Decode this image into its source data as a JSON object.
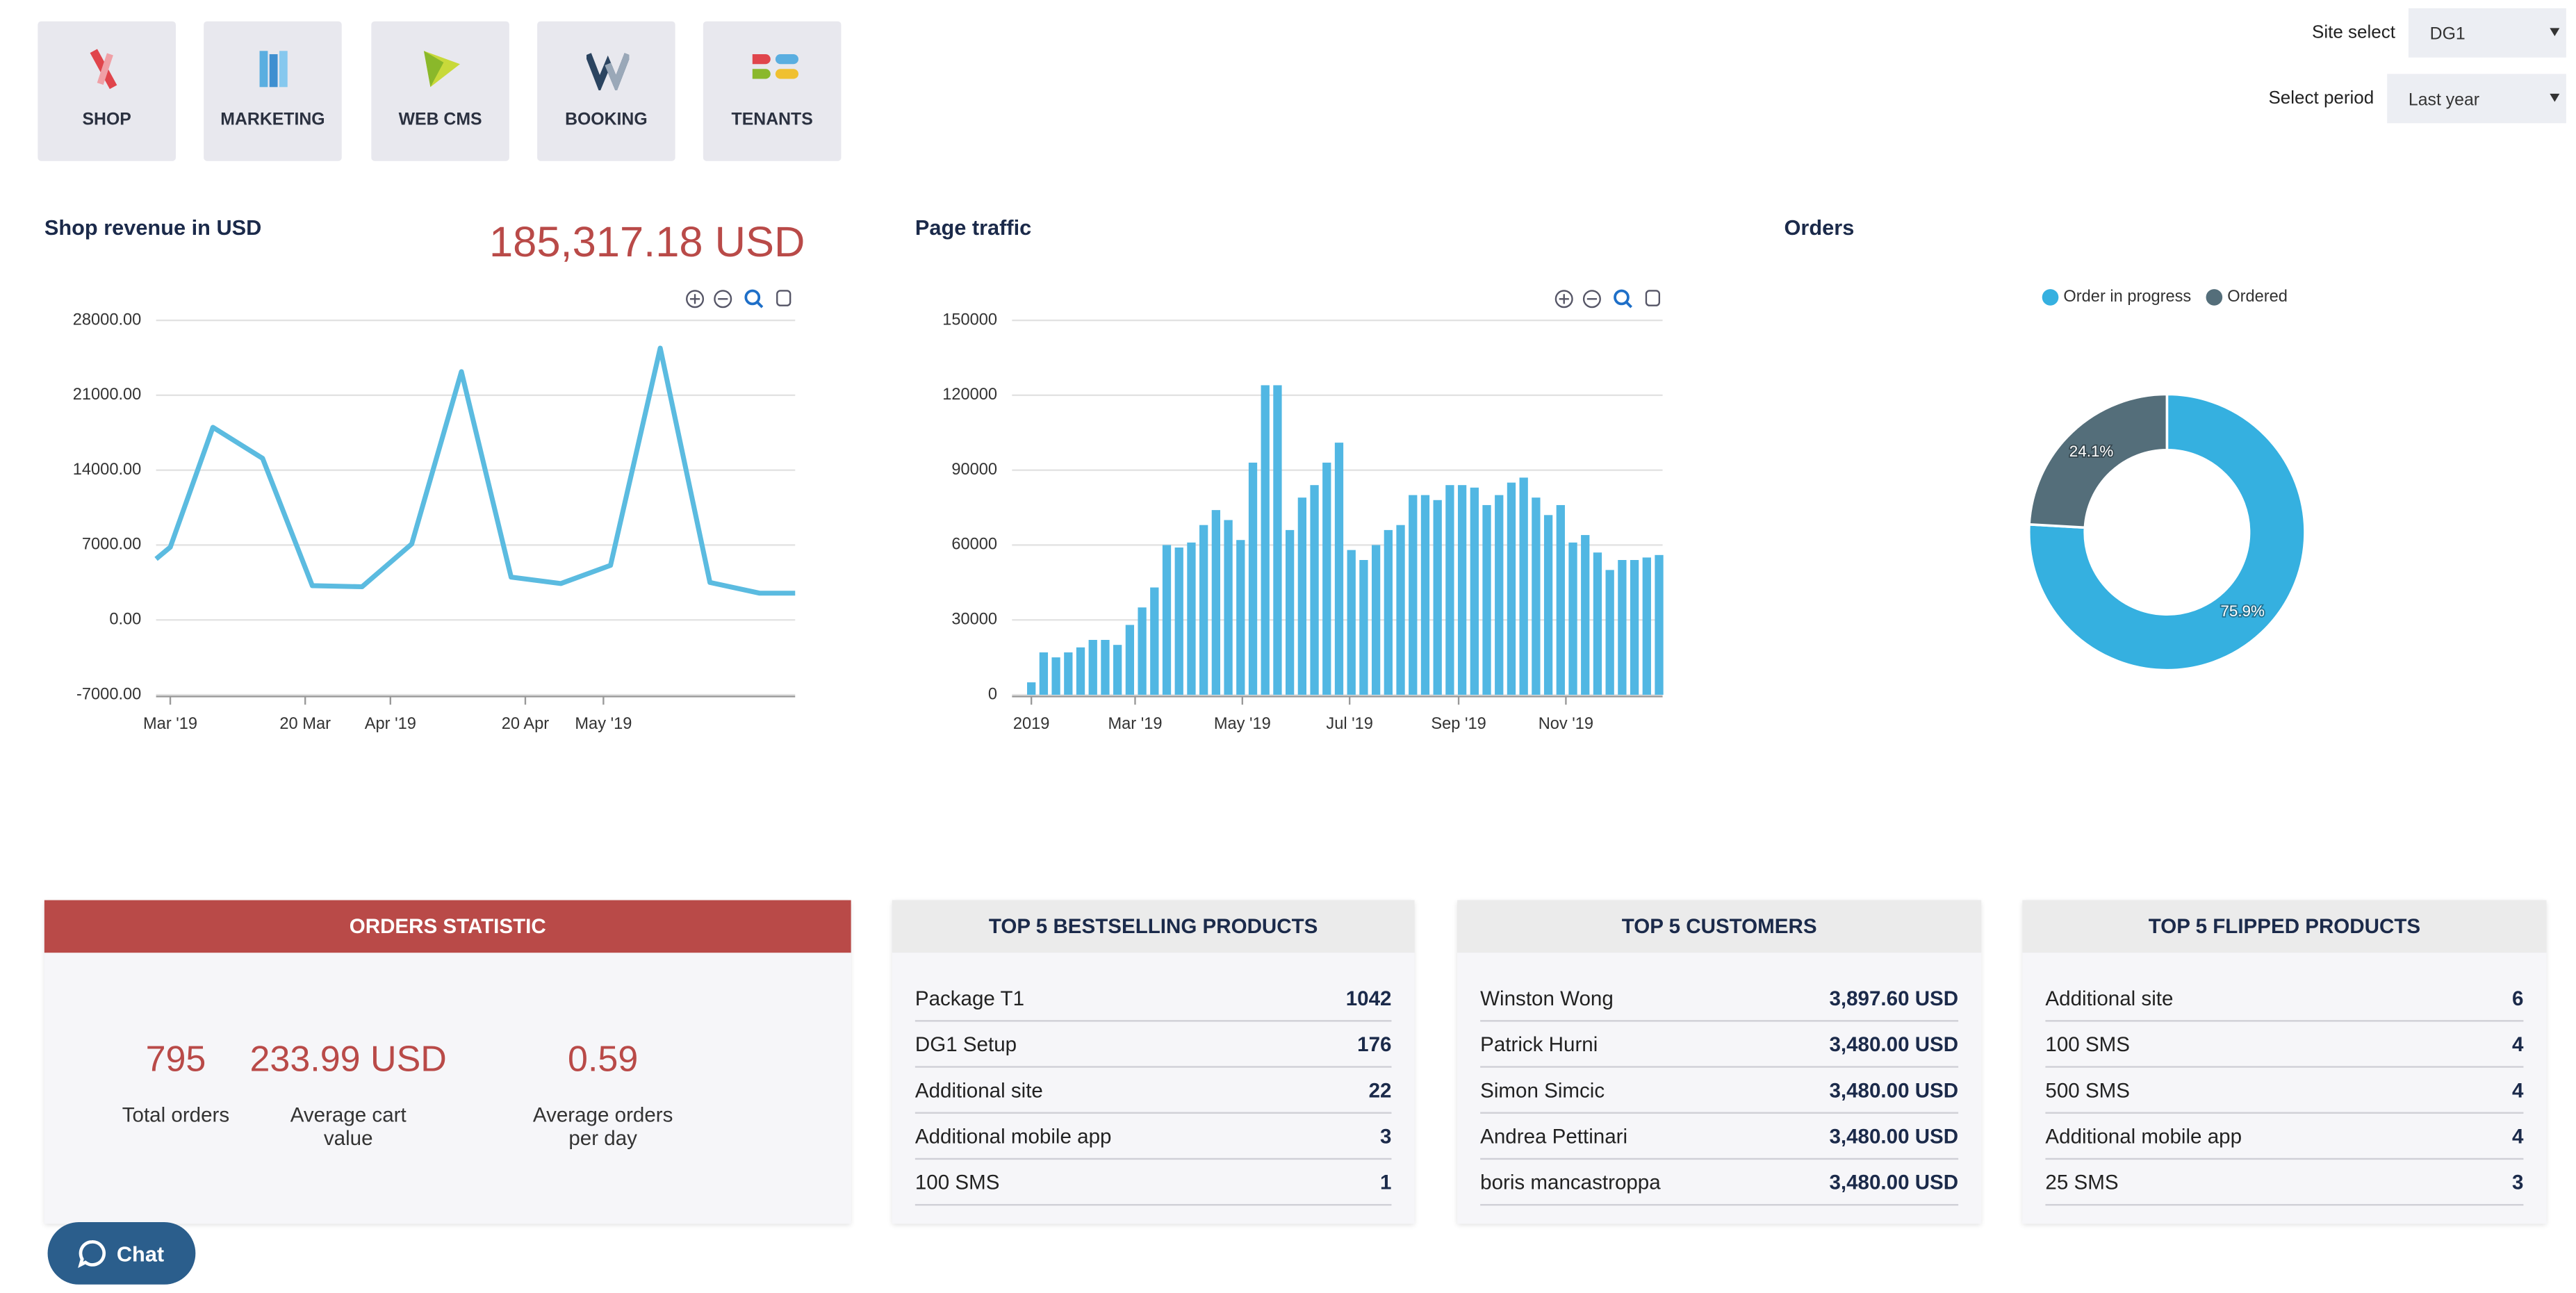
{
  "nav": [
    "SHOP",
    "MARKETING",
    "WEB CMS",
    "BOOKING",
    "TENANTS"
  ],
  "site_select": {
    "label": "Site select",
    "value": "DG1"
  },
  "period_select": {
    "label": "Select period",
    "value": "Last year"
  },
  "revenue_total": "185,317.18 USD",
  "chart_data": [
    {
      "type": "line",
      "title": "Shop revenue in USD",
      "color": "#5bbbe0",
      "x": [
        57,
        59,
        65,
        72,
        79,
        86,
        93,
        100,
        107,
        114,
        121,
        128,
        135,
        142,
        147
      ],
      "values": [
        5700,
        6800,
        18000,
        15100,
        3200,
        3100,
        7100,
        23200,
        4000,
        3400,
        5100,
        25400,
        3500,
        2500,
        2500
      ],
      "xlim": [
        57,
        147
      ],
      "xticks": [
        {
          "value": 59,
          "label": "Mar '19"
        },
        {
          "value": 78,
          "label": "20 Mar"
        },
        {
          "value": 90,
          "label": "Apr '19"
        },
        {
          "value": 109,
          "label": "20 Apr"
        },
        {
          "value": 120,
          "label": "May '19"
        }
      ],
      "ylim": [
        -7000,
        28000
      ],
      "yticks": [
        {
          "value": -7000,
          "label": "-7000.00"
        },
        {
          "value": 0,
          "label": "0.00"
        },
        {
          "value": 7000,
          "label": "7000.00"
        },
        {
          "value": 14000,
          "label": "14000.00"
        },
        {
          "value": 21000,
          "label": "21000.00"
        },
        {
          "value": 28000,
          "label": "28000.00"
        }
      ],
      "grid": true
    },
    {
      "type": "bar",
      "title": "Page traffic",
      "color": "#51b7e3",
      "x": [
        0,
        7,
        14,
        21,
        28,
        35,
        42,
        49,
        56,
        63,
        70,
        77,
        84,
        91,
        98,
        105,
        112,
        119,
        126,
        133,
        140,
        147,
        154,
        161,
        168,
        175,
        182,
        189,
        196,
        203,
        210,
        217,
        224,
        231,
        238,
        245,
        252,
        259,
        266,
        273,
        280,
        287,
        294,
        301,
        308,
        315,
        322,
        329,
        336,
        343,
        350,
        357
      ],
      "values": [
        5000,
        17000,
        15000,
        17000,
        19000,
        22000,
        22000,
        20000,
        28000,
        35000,
        43000,
        60000,
        59000,
        61000,
        68000,
        74000,
        70000,
        62000,
        93000,
        124000,
        124000,
        66000,
        79000,
        84000,
        93000,
        101000,
        58000,
        54000,
        60000,
        66000,
        68000,
        80000,
        80000,
        78000,
        84000,
        84000,
        83000,
        76000,
        80000,
        85000,
        87000,
        79000,
        72000,
        76000,
        61000,
        64000,
        57000,
        50000,
        54000,
        54000,
        55000,
        56000
      ],
      "xlim": [
        -11,
        359
      ],
      "xticks": [
        {
          "value": 0,
          "label": "2019"
        },
        {
          "value": 59,
          "label": "Mar '19"
        },
        {
          "value": 120,
          "label": "May '19"
        },
        {
          "value": 181,
          "label": "Jul '19"
        },
        {
          "value": 243,
          "label": "Sep '19"
        },
        {
          "value": 304,
          "label": "Nov '19"
        }
      ],
      "ylim": [
        0,
        150000
      ],
      "yticks": [
        0,
        30000,
        60000,
        90000,
        120000,
        150000
      ],
      "grid": true
    },
    {
      "type": "pie",
      "title": "Orders",
      "categories": [
        "Order in progress",
        "Ordered"
      ],
      "values": [
        75.9,
        24.1
      ],
      "value_labels": [
        "75.9%",
        "24.1%"
      ],
      "colors": [
        "#35b0e0",
        "#546e7a"
      ],
      "legend": "top"
    }
  ],
  "orders_statistic": {
    "title": "ORDERS STATISTIC",
    "stats": [
      {
        "value": "795",
        "label": "Total orders"
      },
      {
        "value": "233.99 USD",
        "label": "Average cart value"
      },
      {
        "value": "0.59",
        "label": "Average orders per day"
      }
    ]
  },
  "tables": [
    {
      "title": "TOP 5 BESTSELLING PRODUCTS",
      "rows": [
        [
          "Package T1",
          "1042"
        ],
        [
          "DG1 Setup",
          "176"
        ],
        [
          "Additional site",
          "22"
        ],
        [
          "Additional mobile app",
          "3"
        ],
        [
          "100 SMS",
          "1"
        ]
      ]
    },
    {
      "title": "TOP 5 CUSTOMERS",
      "rows": [
        [
          "Winston Wong",
          "3,897.60 USD"
        ],
        [
          "Patrick Hurni",
          "3,480.00 USD"
        ],
        [
          "Simon Simcic",
          "3,480.00 USD"
        ],
        [
          "Andrea Pettinari",
          "3,480.00 USD"
        ],
        [
          "boris mancastroppa",
          "3,480.00 USD"
        ]
      ]
    },
    {
      "title": "TOP 5 FLIPPED PRODUCTS",
      "rows": [
        [
          "Additional site",
          "6"
        ],
        [
          "100 SMS",
          "4"
        ],
        [
          "500 SMS",
          "4"
        ],
        [
          "Additional mobile app",
          "4"
        ],
        [
          "25 SMS",
          "3"
        ]
      ]
    }
  ],
  "chat": "Chat"
}
